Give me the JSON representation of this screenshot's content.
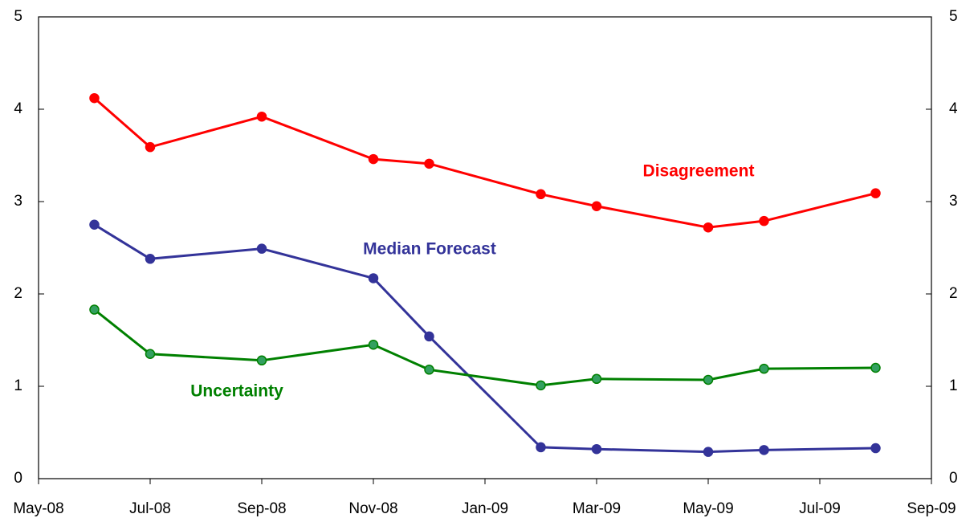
{
  "chart_data": {
    "type": "line",
    "x": [
      "2008-06",
      "2008-07",
      "2008-09",
      "2008-11",
      "2008-12",
      "2009-02",
      "2009-03",
      "2009-05",
      "2009-06",
      "2009-08"
    ],
    "series": [
      {
        "name": "Disagreement",
        "color": "#ff0000",
        "values": [
          4.12,
          3.59,
          3.92,
          3.46,
          3.41,
          3.08,
          2.95,
          2.72,
          2.79,
          3.09
        ]
      },
      {
        "name": "Median Forecast",
        "color": "#333399",
        "values": [
          2.75,
          2.38,
          2.49,
          2.17,
          1.54,
          0.34,
          0.32,
          0.29,
          0.31,
          0.33
        ]
      },
      {
        "name": "Uncertainty",
        "color": "#008000",
        "values": [
          1.83,
          1.35,
          1.28,
          1.45,
          1.18,
          1.01,
          1.08,
          1.07,
          1.19,
          1.2
        ]
      }
    ],
    "xlim": [
      "2008-05",
      "2009-09"
    ],
    "xticks": [
      {
        "value": "2008-05",
        "label": "May-08"
      },
      {
        "value": "2008-07",
        "label": "Jul-08"
      },
      {
        "value": "2008-09",
        "label": "Sep-08"
      },
      {
        "value": "2008-11",
        "label": "Nov-08"
      },
      {
        "value": "2009-01",
        "label": "Jan-09"
      },
      {
        "value": "2009-03",
        "label": "Mar-09"
      },
      {
        "value": "2009-05",
        "label": "May-09"
      },
      {
        "value": "2009-07",
        "label": "Jul-09"
      },
      {
        "value": "2009-09",
        "label": "Sep-09"
      }
    ],
    "ylim": [
      0,
      5
    ],
    "yticks": [
      0,
      1,
      2,
      3,
      4,
      5
    ],
    "y2lim": [
      0,
      5
    ],
    "y2ticks": [
      0,
      1,
      2,
      3,
      4,
      5
    ]
  }
}
